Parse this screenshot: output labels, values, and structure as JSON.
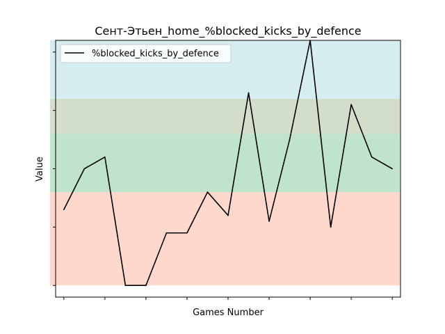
{
  "chart_data": {
    "type": "line",
    "title": "Сент-Этьен_home_%blocked_kicks_by_defence",
    "xlabel": "Games Number",
    "ylabel": "Value",
    "x": [
      1,
      2,
      3,
      4,
      5,
      6,
      7,
      8,
      9,
      10,
      11,
      12,
      13,
      14,
      15,
      16,
      17
    ],
    "series": [
      {
        "name": "%blocked_kicks_by_defence",
        "color": "#000000",
        "values": [
          1.3,
          2.0,
          2.2,
          0.0,
          0.0,
          0.9,
          0.9,
          1.6,
          1.2,
          3.3,
          1.1,
          2.5,
          4.2,
          1.0,
          3.1,
          2.2,
          2.0
        ]
      }
    ],
    "xlim": [
      0.6,
      17.4
    ],
    "ylim": [
      -0.2,
      4.2
    ],
    "y_tick_values": [
      0,
      1,
      2,
      3,
      4
    ],
    "x_tick_values": [
      1,
      3,
      5,
      7,
      9,
      11,
      13,
      15,
      17
    ],
    "tick_labels_shown": false,
    "bands": [
      {
        "from": 0.0,
        "to": 1.6,
        "color": "#fdd8cb"
      },
      {
        "from": 1.6,
        "to": 2.6,
        "color": "#bfe3cc"
      },
      {
        "from": 2.6,
        "to": 3.2,
        "color": "#d3ddcc"
      },
      {
        "from": 3.2,
        "to": 4.2,
        "color": "#d5ecf0"
      }
    ],
    "grid": false,
    "legend_position": "top-left"
  }
}
